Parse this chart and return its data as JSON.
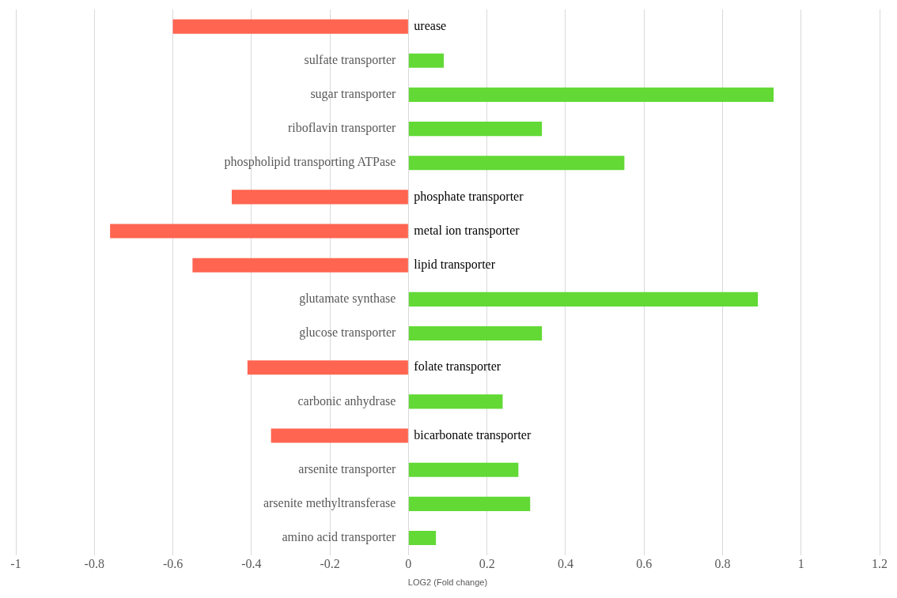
{
  "chart_data": {
    "type": "bar",
    "orientation": "horizontal",
    "xlabel": "LOG2 (Fold change)",
    "categories": [
      "urease",
      "sulfate transporter",
      "sugar transporter",
      "riboflavin transporter",
      "phospholipid transporting ATPase",
      "phosphate transporter",
      "metal ion transporter",
      "lipid transporter",
      "glutamate synthase",
      "glucose transporter",
      "folate transporter",
      "carbonic anhydrase",
      "bicarbonate transporter",
      "arsenite transporter",
      "arsenite methyltransferase",
      "amino acid transporter"
    ],
    "values": [
      -0.6,
      0.09,
      0.93,
      0.34,
      0.55,
      -0.45,
      -0.76,
      -0.55,
      0.89,
      0.34,
      -0.41,
      0.24,
      -0.35,
      0.28,
      0.31,
      0.07
    ],
    "colors": [
      "#ff6550",
      "#62d935",
      "#62d935",
      "#62d935",
      "#62d935",
      "#ff6550",
      "#ff6550",
      "#ff6550",
      "#62d935",
      "#62d935",
      "#ff6550",
      "#62d935",
      "#ff6550",
      "#62d935",
      "#62d935",
      "#62d935"
    ],
    "xlim": [
      -1,
      1.2
    ],
    "xticks": [
      -1,
      -0.8,
      -0.6,
      -0.4,
      -0.2,
      0,
      0.2,
      0.4,
      0.6,
      0.8,
      1,
      1.2
    ],
    "grid": "x",
    "legend": false
  }
}
